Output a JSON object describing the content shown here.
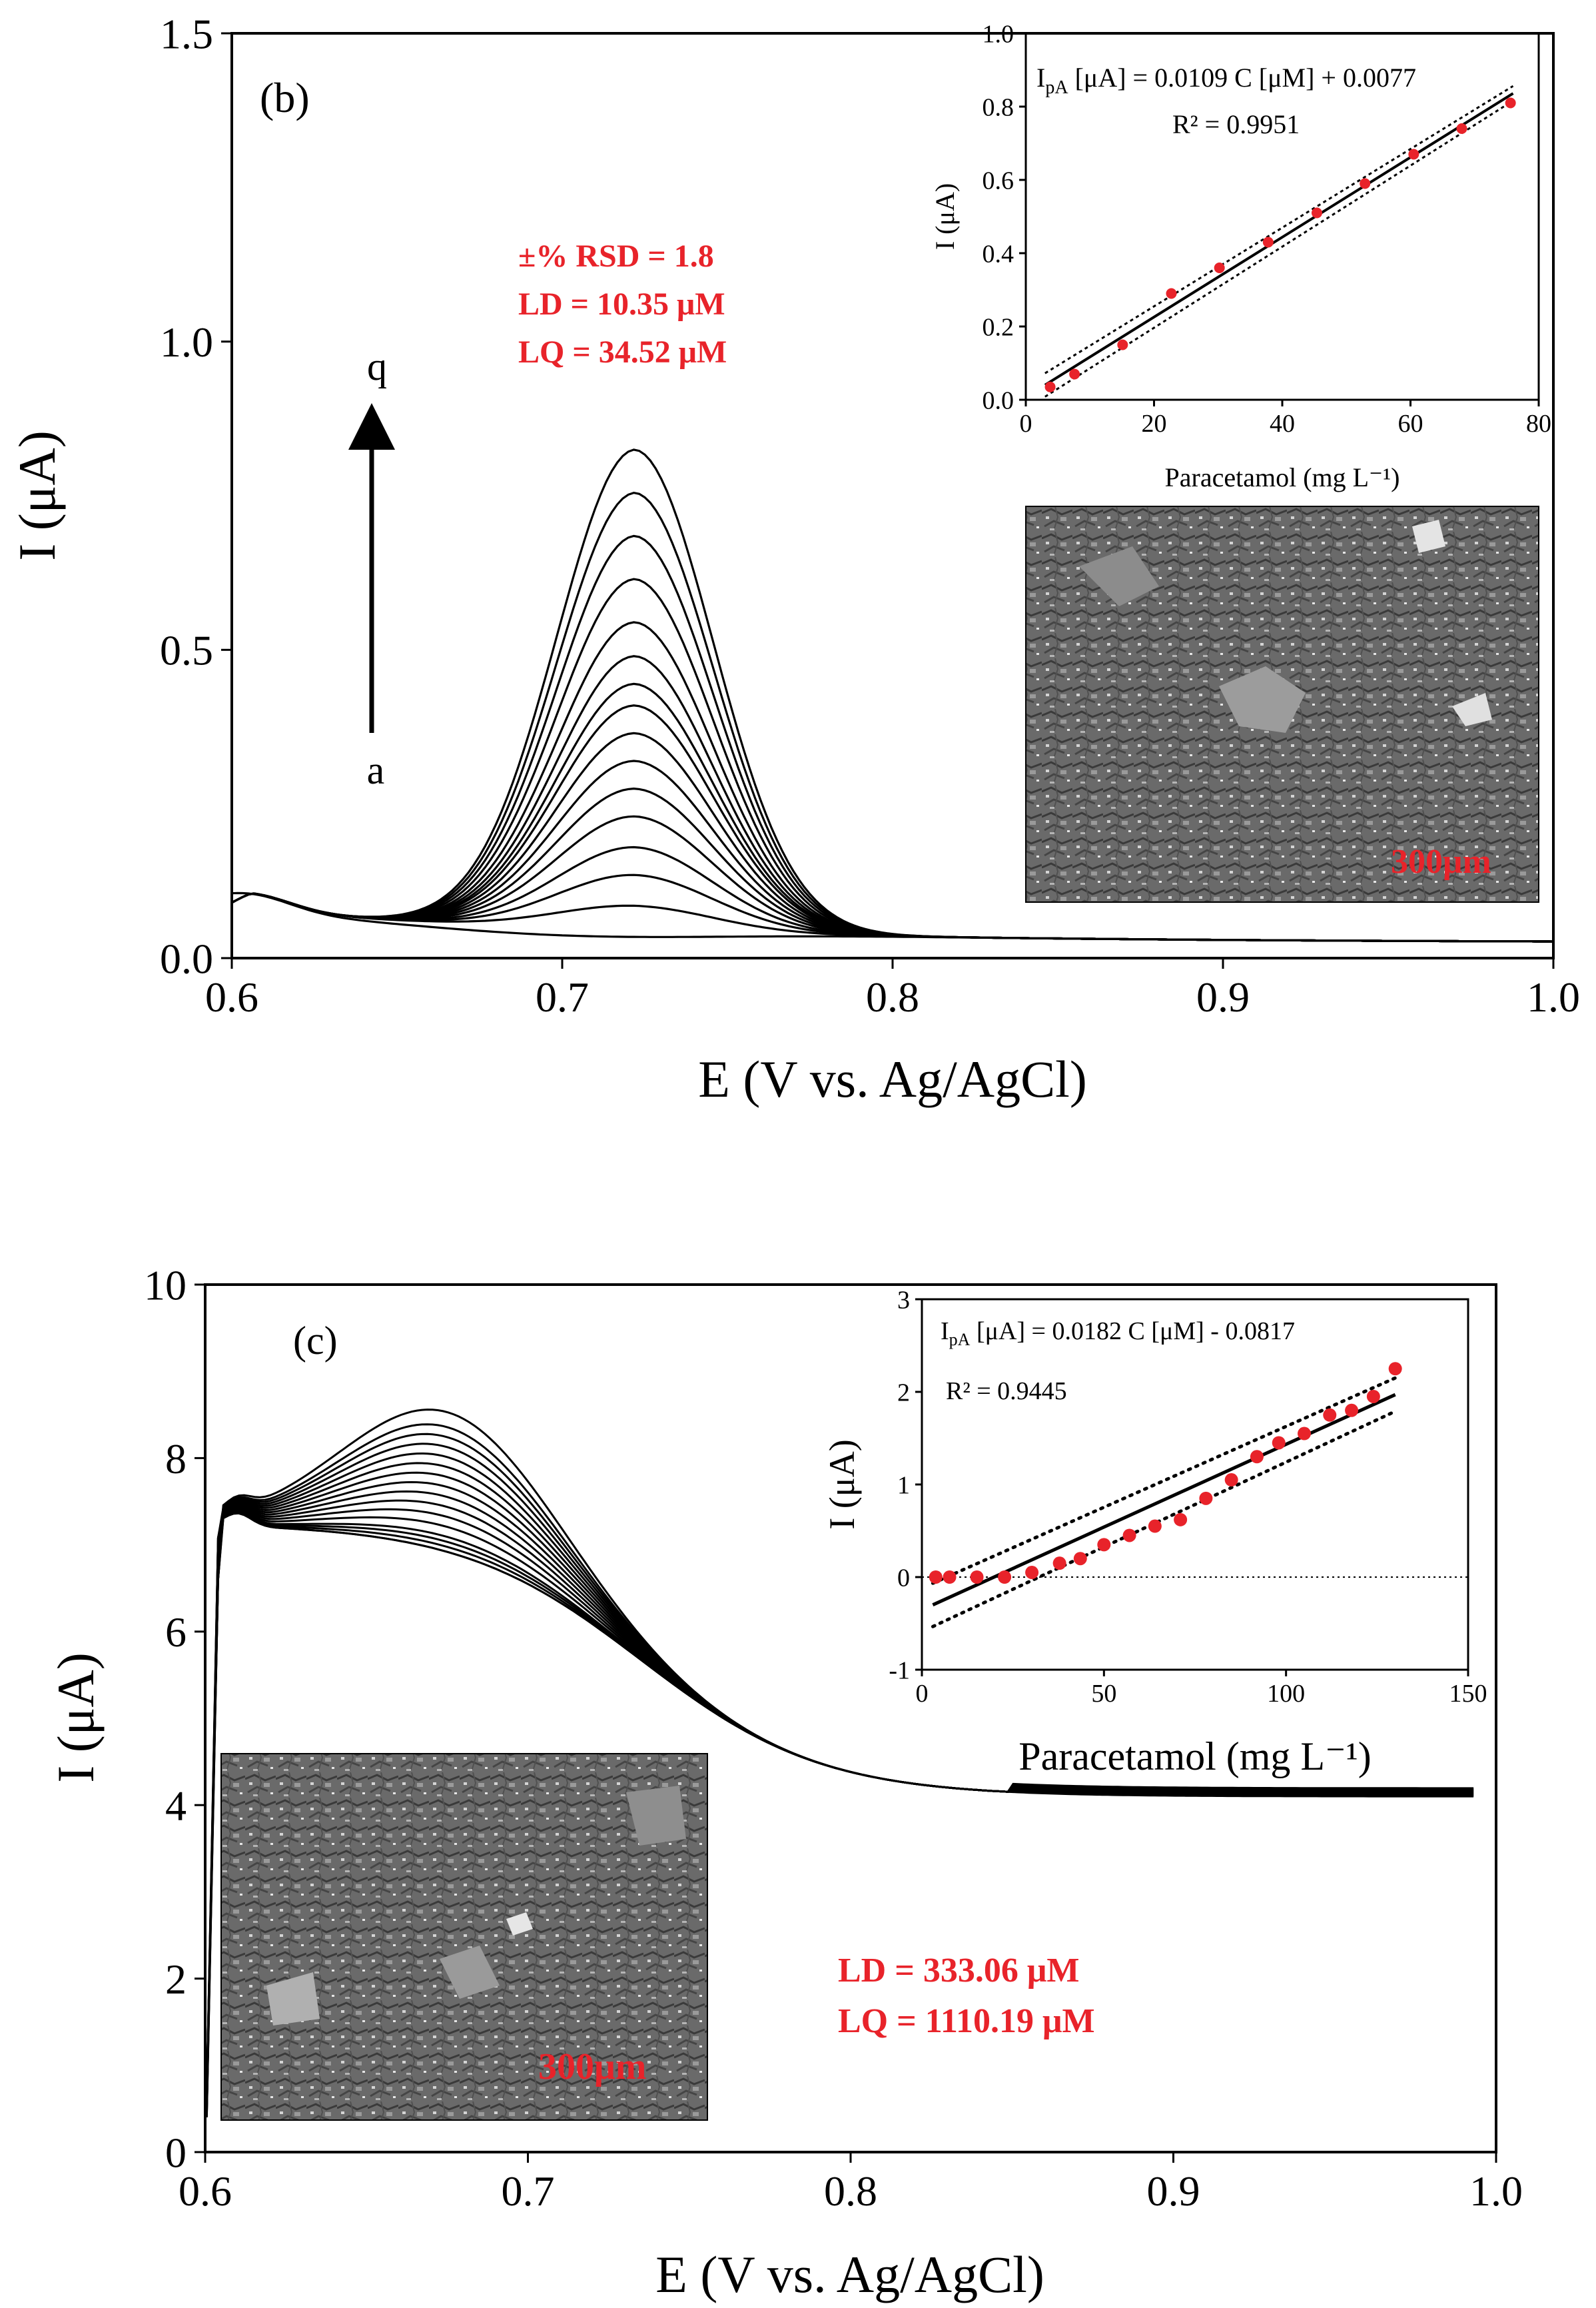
{
  "colors": {
    "annotation": "#e8232a",
    "curve": "#000000",
    "point": "#e8232a",
    "sem_bg": "#6a6a6a"
  },
  "chart_data": [
    {
      "id": "b",
      "type": "line",
      "panel_label": "(b)",
      "xlabel": "E (V vs. Ag/AgCl)",
      "ylabel": "I (μA)",
      "xlim": [
        0.6,
        1.0
      ],
      "ylim": [
        0.0,
        1.5
      ],
      "x_ticks": [
        "0.6",
        "0.7",
        "0.8",
        "0.9",
        "1.0"
      ],
      "y_ticks": [
        "0.0",
        "0.5",
        "1.0",
        "1.5"
      ],
      "grid": false,
      "legend": "none",
      "arrow": {
        "from_label": "a",
        "to_label": "q"
      },
      "annotations": [
        "±% RSD = 1.8",
        "LD = 10.35 μM",
        "LQ = 34.52 μM"
      ],
      "baseline": {
        "start": 0.07,
        "shoulder_x": 0.605,
        "shoulder_y": 0.095,
        "end": 0.025
      },
      "peak_x": 0.722,
      "peak_width": 0.034,
      "peak_heights": [
        0.035,
        0.07,
        0.12,
        0.165,
        0.215,
        0.26,
        0.305,
        0.35,
        0.395,
        0.43,
        0.475,
        0.53,
        0.6,
        0.67,
        0.74,
        0.81
      ],
      "sem_scale_label": "300μm",
      "inset": {
        "type": "scatter",
        "xlabel": "Paracetamol (mg L⁻¹)",
        "ylabel": "I (μA)",
        "xlim": [
          0,
          80
        ],
        "ylim": [
          0.0,
          1.0
        ],
        "x_ticks": [
          "0",
          "20",
          "40",
          "60",
          "80"
        ],
        "y_ticks": [
          "0.0",
          "0.2",
          "0.4",
          "0.6",
          "0.8",
          "1.0"
        ],
        "equation": "IpA [μA] = 0.0109 C [μM] + 0.0077",
        "r2": "R² = 0.9951",
        "fit": {
          "slope": 0.0109,
          "intercept": 0.0077
        },
        "band_offset": 0.02,
        "points": {
          "x": [
            3.8,
            7.6,
            15.1,
            22.7,
            30.2,
            37.8,
            45.4,
            52.9,
            60.5,
            68.0,
            75.6
          ],
          "y": [
            0.035,
            0.07,
            0.15,
            0.29,
            0.36,
            0.43,
            0.51,
            0.59,
            0.67,
            0.74,
            0.81
          ]
        }
      }
    },
    {
      "id": "c",
      "type": "line",
      "panel_label": "(c)",
      "xlabel": "E (V vs. Ag/AgCl)",
      "ylabel": "I (μA)",
      "xlim": [
        0.6,
        1.0
      ],
      "ylim": [
        0,
        10
      ],
      "x_ticks": [
        "0.6",
        "0.7",
        "0.8",
        "0.9",
        "1.0"
      ],
      "y_ticks": [
        "0",
        "2",
        "4",
        "6",
        "8",
        "10"
      ],
      "grid": false,
      "legend": "none",
      "annotations": [
        "LD = 333.06 μM",
        "LQ = 1110.19 μM"
      ],
      "baseline": {
        "plateau": 7.3,
        "cross_x": 0.622,
        "cross_y": 7.05,
        "end": 4.1
      },
      "peak_x": 0.675,
      "peak_width": 0.045,
      "peak_tops": [
        7.0,
        7.05,
        7.1,
        7.15,
        7.2,
        7.3,
        7.4,
        7.5,
        7.6,
        7.7,
        7.8,
        7.9,
        8.0,
        8.1,
        8.2,
        8.3,
        8.45
      ],
      "sem_scale_label": "300μm",
      "inset": {
        "type": "scatter",
        "xlabel": "Paracetamol (mg L⁻¹)",
        "ylabel": "I (μA)",
        "xlim": [
          0,
          150
        ],
        "ylim": [
          -1,
          3
        ],
        "x_ticks": [
          "0",
          "50",
          "100",
          "150"
        ],
        "y_ticks": [
          "-1",
          "0",
          "1",
          "2",
          "3"
        ],
        "equation": "IpA [μA] = 0.0182 C [μM] - 0.0817",
        "r2": "R² = 0.9445",
        "fit": {
          "slope": 0.0182,
          "intercept": -0.0817
        },
        "band_offset": 0.18,
        "zero_line": true,
        "points": {
          "x": [
            3.8,
            7.6,
            15.1,
            22.7,
            30.2,
            37.8,
            43.5,
            50.0,
            57.0,
            64.0,
            71.0,
            78.0,
            85.0,
            92.0,
            98.0,
            105.0,
            112.0,
            118.0,
            124.0,
            130.0
          ],
          "y": [
            0.0,
            0.0,
            0.0,
            0.0,
            0.05,
            0.15,
            0.2,
            0.35,
            0.45,
            0.55,
            0.62,
            0.85,
            1.05,
            1.3,
            1.45,
            1.55,
            1.75,
            1.8,
            1.95,
            2.25
          ]
        }
      }
    }
  ]
}
